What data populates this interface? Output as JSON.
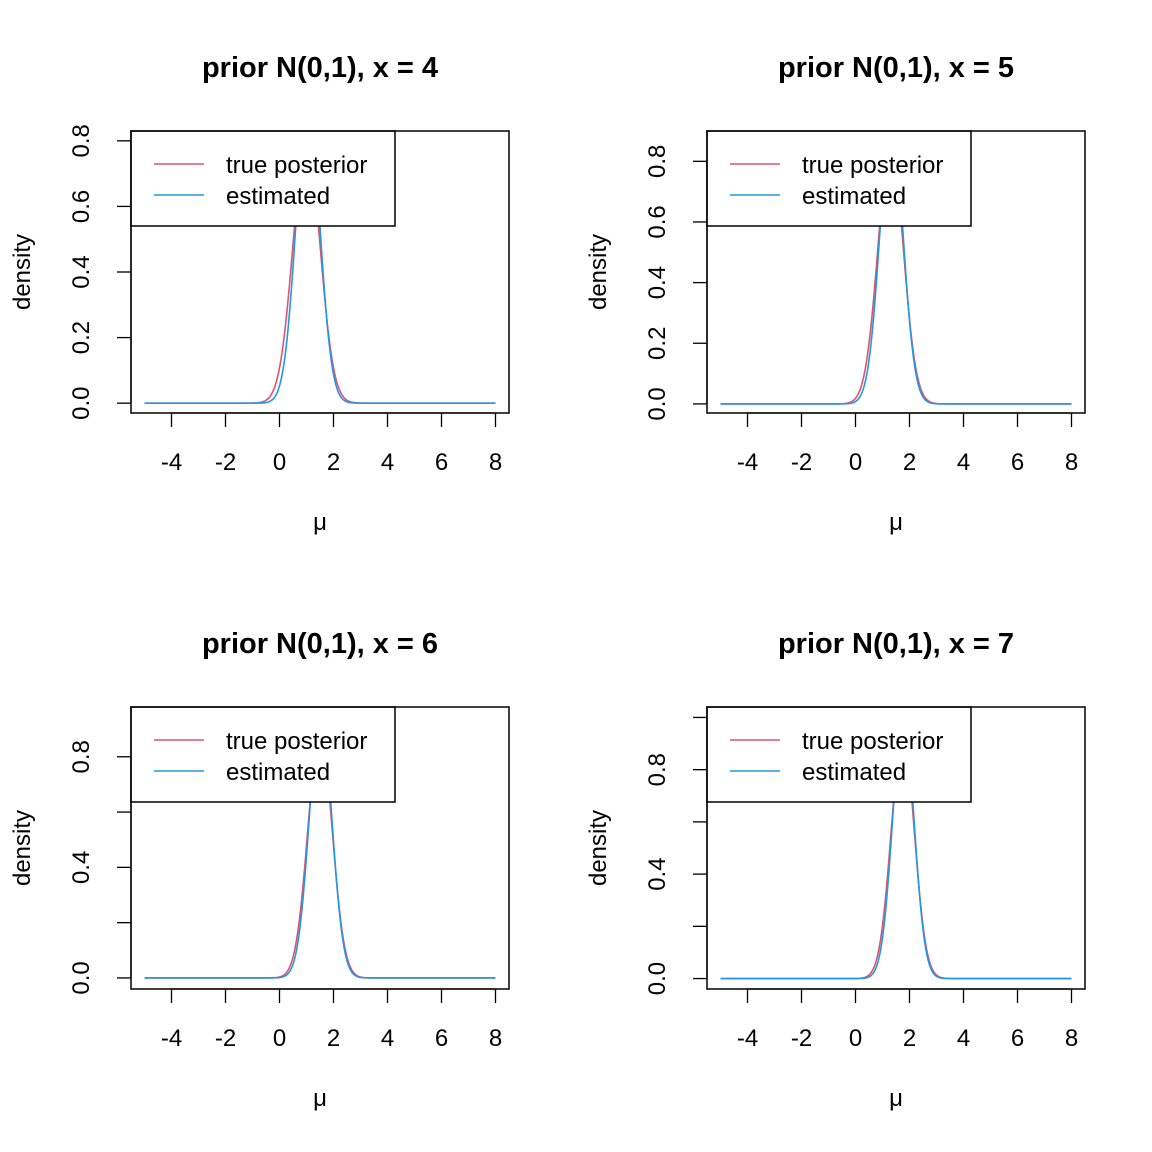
{
  "chart_data": [
    {
      "type": "line",
      "title": "prior N(0,1), x = 4",
      "xlabel": "μ",
      "ylabel": "density",
      "xlim": [
        -5.5,
        8.5
      ],
      "ylim": [
        -0.03,
        0.83
      ],
      "x_ticks": [
        "-4",
        "-2",
        "0",
        "2",
        "4",
        "6",
        "8"
      ],
      "y_ticks": [
        "0.0",
        "0.2",
        "0.4",
        "0.6",
        "0.8"
      ],
      "y_tick_values": [
        0,
        0.2,
        0.4,
        0.6,
        0.8
      ],
      "x_range": [
        -5,
        8
      ],
      "legend": {
        "position": "top-left",
        "entries": [
          "true posterior",
          "estimated"
        ]
      },
      "series": [
        {
          "name": "true posterior",
          "color": "#DF536B",
          "mean": 1.0,
          "sd": 0.5
        },
        {
          "name": "estimated",
          "color": "#2297E6",
          "mean": 1.05,
          "sd": 0.44
        }
      ]
    },
    {
      "type": "line",
      "title": "prior N(0,1), x = 5",
      "xlabel": "μ",
      "ylabel": "density",
      "xlim": [
        -5.5,
        8.5
      ],
      "ylim": [
        -0.03,
        0.9
      ],
      "x_ticks": [
        "-4",
        "-2",
        "0",
        "2",
        "4",
        "6",
        "8"
      ],
      "y_ticks": [
        "0.0",
        "0.2",
        "0.4",
        "0.6",
        "0.8"
      ],
      "y_tick_values": [
        0,
        0.2,
        0.4,
        0.6,
        0.8
      ],
      "x_range": [
        -5,
        8
      ],
      "legend": {
        "position": "top-left",
        "entries": [
          "true posterior",
          "estimated"
        ]
      },
      "series": [
        {
          "name": "true posterior",
          "color": "#DF536B",
          "mean": 1.3,
          "sd": 0.47
        },
        {
          "name": "estimated",
          "color": "#2297E6",
          "mean": 1.33,
          "sd": 0.43
        }
      ]
    },
    {
      "type": "line",
      "title": "prior N(0,1), x = 6",
      "xlabel": "μ",
      "ylabel": "density",
      "xlim": [
        -5.5,
        8.5
      ],
      "ylim": [
        -0.04,
        0.98
      ],
      "x_ticks": [
        "-4",
        "-2",
        "0",
        "2",
        "4",
        "6",
        "8"
      ],
      "y_ticks": [
        "0.0",
        "0.4",
        "0.8"
      ],
      "y_tick_values": [
        0,
        0.2,
        0.4,
        0.6,
        0.8
      ],
      "y_tick_label_values": [
        0,
        0.4,
        0.8
      ],
      "x_range": [
        -5,
        8
      ],
      "legend": {
        "position": "top-left",
        "entries": [
          "true posterior",
          "estimated"
        ]
      },
      "series": [
        {
          "name": "true posterior",
          "color": "#DF536B",
          "mean": 1.5,
          "sd": 0.45
        },
        {
          "name": "estimated",
          "color": "#2297E6",
          "mean": 1.52,
          "sd": 0.42
        }
      ]
    },
    {
      "type": "line",
      "title": "prior N(0,1), x = 7",
      "xlabel": "μ",
      "ylabel": "density",
      "xlim": [
        -5.5,
        8.5
      ],
      "ylim": [
        -0.04,
        1.04
      ],
      "x_ticks": [
        "-4",
        "-2",
        "0",
        "2",
        "4",
        "6",
        "8"
      ],
      "y_ticks": [
        "0.0",
        "0.4",
        "0.8"
      ],
      "y_tick_values": [
        0,
        0.2,
        0.4,
        0.6,
        0.8,
        1.0
      ],
      "y_tick_label_values": [
        0,
        0.4,
        0.8
      ],
      "x_range": [
        -5,
        8
      ],
      "legend": {
        "position": "top-left",
        "entries": [
          "true posterior",
          "estimated"
        ]
      },
      "series": [
        {
          "name": "true posterior",
          "color": "#DF536B",
          "mean": 1.75,
          "sd": 0.43
        },
        {
          "name": "estimated",
          "color": "#2297E6",
          "mean": 1.77,
          "sd": 0.4
        }
      ]
    }
  ]
}
